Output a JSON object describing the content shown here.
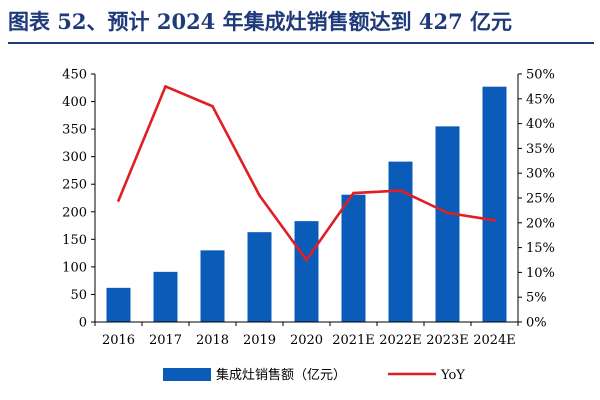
{
  "title": "图表 52、预计 2024 年集成灶销售额达到 427 亿元",
  "colors": {
    "title": "#1f3a7a",
    "bar": "#0a5cb8",
    "line": "#e01e24",
    "axis": "#000000"
  },
  "chart_data": {
    "type": "bar",
    "title": "图表 52、预计 2024 年集成灶销售额达到 427 亿元",
    "categories": [
      "2016",
      "2017",
      "2018",
      "2019",
      "2020",
      "2021E",
      "2022E",
      "2023E",
      "2024E"
    ],
    "series": [
      {
        "name": "集成灶销售额（亿元）",
        "type": "bar",
        "axis": "left",
        "values": [
          62,
          91,
          130,
          163,
          183,
          231,
          291,
          355,
          427
        ]
      },
      {
        "name": "YoY",
        "type": "line",
        "axis": "right",
        "values": [
          24.5,
          47.5,
          43.5,
          25.5,
          12.5,
          26.0,
          26.5,
          22.0,
          20.5
        ]
      }
    ],
    "y_left": {
      "min": 0,
      "max": 450,
      "step": 50,
      "ticks": [
        "0",
        "50",
        "100",
        "150",
        "200",
        "250",
        "300",
        "350",
        "400",
        "450"
      ]
    },
    "y_right": {
      "min": 0,
      "max": 50,
      "step": 5,
      "ticks": [
        "0%",
        "5%",
        "10%",
        "15%",
        "20%",
        "25%",
        "30%",
        "35%",
        "40%",
        "45%",
        "50%"
      ]
    },
    "xlabel": "",
    "ylabel": "",
    "grid": false,
    "legend_position": "bottom"
  }
}
